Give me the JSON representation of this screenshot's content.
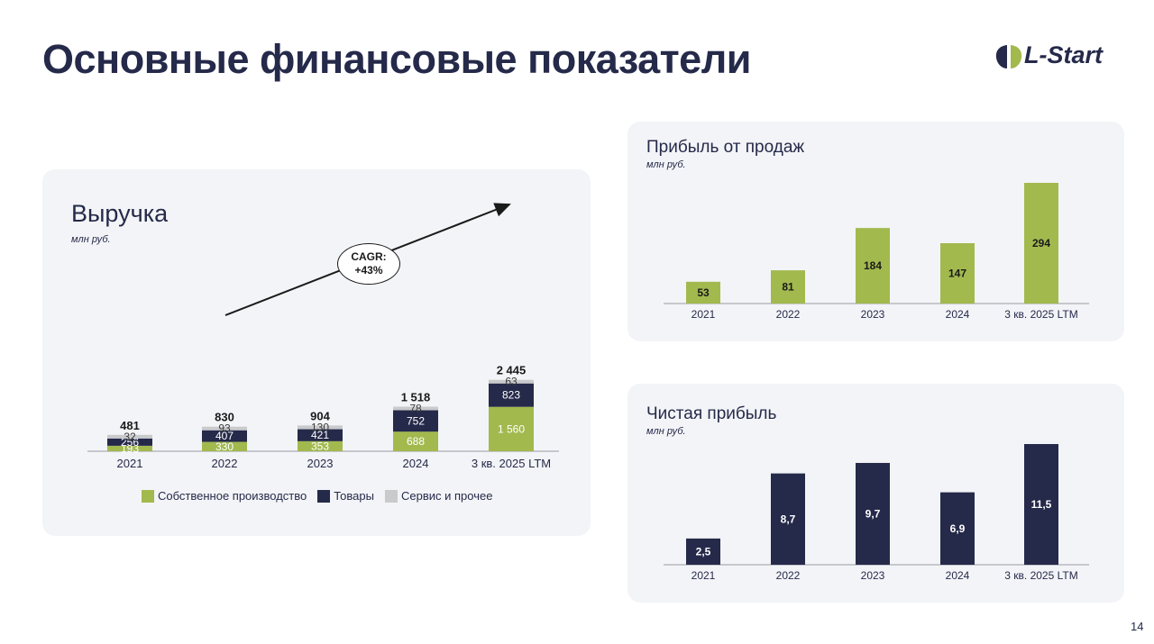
{
  "page": {
    "title": "Основные финансовые показатели",
    "number": "14",
    "logo_text": "L-Start"
  },
  "colors": {
    "green": "#a2b94e",
    "navy": "#252a4a",
    "grey": "#c9cacc",
    "panel_bg": "#f3f4f7"
  },
  "revenue": {
    "title": "Выручка",
    "unit": "млн руб.",
    "cagr_label": "CAGR:",
    "cagr_value": "+43%",
    "legend": [
      {
        "label": "Собственное производство",
        "color": "#a2b94e"
      },
      {
        "label": "Товары",
        "color": "#252a4a"
      },
      {
        "label": "Сервис и прочее",
        "color": "#c9cacc"
      }
    ]
  },
  "sales_profit": {
    "title": "Прибыль от продаж",
    "unit": "млн руб."
  },
  "net_profit": {
    "title": "Чистая прибыль",
    "unit": "млн руб."
  },
  "chart_data": [
    {
      "type": "bar",
      "stacked": true,
      "title": "Выручка",
      "ylabel": "млн руб.",
      "categories": [
        "2021",
        "2022",
        "2023",
        "2024",
        "3 кв. 2025 LTM"
      ],
      "series": [
        {
          "name": "Собственное производство",
          "values": [
            193,
            330,
            353,
            688,
            1560
          ],
          "labels": [
            "193",
            "330",
            "353",
            "688",
            "1 560"
          ]
        },
        {
          "name": "Товары",
          "values": [
            256,
            407,
            421,
            752,
            823
          ],
          "labels": [
            "256",
            "407",
            "421",
            "752",
            "823"
          ]
        },
        {
          "name": "Сервис и прочее",
          "values": [
            32,
            93,
            130,
            78,
            63
          ],
          "labels": [
            "32",
            "93",
            "130",
            "78",
            "63"
          ]
        }
      ],
      "totals": [
        "481",
        "830",
        "904",
        "1 518",
        "2 445"
      ],
      "total_values": [
        481,
        830,
        904,
        1518,
        2445
      ],
      "annotation": "CAGR: +43%",
      "legend": "bottom"
    },
    {
      "type": "bar",
      "title": "Прибыль от продаж",
      "ylabel": "млн руб.",
      "categories": [
        "2021",
        "2022",
        "2023",
        "2024",
        "3 кв. 2025 LTM"
      ],
      "values": [
        53,
        81,
        184,
        147,
        294
      ],
      "labels": [
        "53",
        "81",
        "184",
        "147",
        "294"
      ],
      "color": "#a2b94e"
    },
    {
      "type": "bar",
      "title": "Чистая прибыль",
      "ylabel": "млн руб.",
      "categories": [
        "2021",
        "2022",
        "2023",
        "2024",
        "3 кв. 2025 LTM"
      ],
      "values": [
        2.5,
        8.7,
        9.7,
        6.9,
        11.5
      ],
      "labels": [
        "2,5",
        "8,7",
        "9,7",
        "6,9",
        "11,5"
      ],
      "color": "#252a4a"
    }
  ]
}
